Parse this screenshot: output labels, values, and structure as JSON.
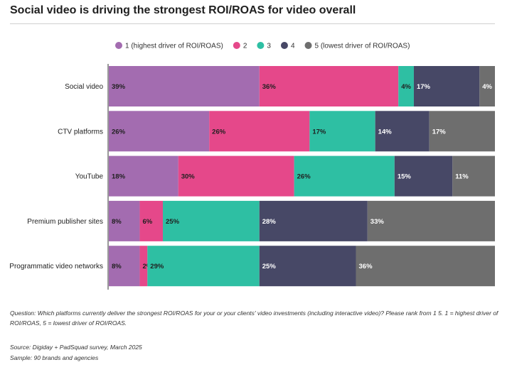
{
  "title": "Social video is driving the strongest ROI/ROAS for video overall",
  "chart_data": {
    "type": "bar",
    "orientation": "horizontal",
    "stacked": true,
    "percent_stacked": true,
    "categories": [
      "Social video",
      "CTV platforms",
      "YouTube",
      "Premium publisher sites",
      "Programmatic video networks"
    ],
    "series": [
      {
        "name": "1 (highest driver of ROI/ROAS)",
        "color": "#a36cb0",
        "values": [
          39,
          26,
          18,
          8,
          8
        ]
      },
      {
        "name": "2",
        "color": "#e5488a",
        "values": [
          36,
          26,
          30,
          6,
          2
        ]
      },
      {
        "name": "3",
        "color": "#2ebfa3",
        "values": [
          4,
          17,
          26,
          25,
          29
        ]
      },
      {
        "name": "4",
        "color": "#474866",
        "values": [
          17,
          14,
          15,
          28,
          25
        ]
      },
      {
        "name": "5 (lowest driver of ROI/ROAS)",
        "color": "#6e6e6e",
        "values": [
          4,
          17,
          11,
          33,
          36
        ]
      }
    ],
    "xlim": [
      0,
      100
    ],
    "legend_position": "top",
    "grid": false,
    "value_label_suffix": "%"
  },
  "footnotes": {
    "question": "Question: Which platforms currently deliver the strongest ROI/ROAS for your or your clients' video investments (including interactive video)? Please rank from 1 5. 1 = highest driver of ROI/ROAS, 5 = lowest driver of ROI/ROAS.",
    "source": "Source: Digiday + PadSquad survey, March 2025",
    "sample": "Sample: 90 brands and agencies"
  }
}
